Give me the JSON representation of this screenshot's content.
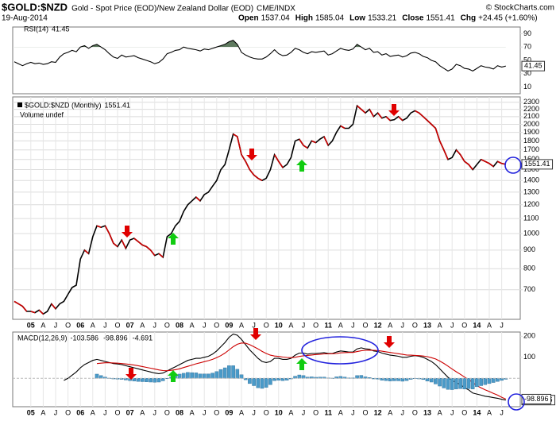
{
  "header": {
    "symbol": "$GOLD:$NZD",
    "name": "Gold - Spot Price (EOD)/New Zealand Dollar (EOD)",
    "exchange": "CME/INDX",
    "date": "19-Aug-2014",
    "quote": [
      {
        "label": "Open",
        "value": 1537.04
      },
      {
        "label": "High",
        "value": 1585.04
      },
      {
        "label": "Low",
        "value": 1533.21
      },
      {
        "label": "Close",
        "value": 1551.41
      },
      {
        "label": "Chg",
        "value": "+24.45 (+1.60%)"
      }
    ],
    "credit": "© StockCharts.com"
  },
  "chart_data": [
    {
      "type": "line",
      "ylim": [
        0,
        100
      ],
      "yticks": [
        10,
        30,
        50,
        70,
        90
      ],
      "shade_above": 70,
      "shade_color": "#5f7a5f",
      "series": [
        {
          "name": "RSI(14)",
          "color": "#000000",
          "values": [
            48,
            45,
            42,
            45,
            47,
            45,
            46,
            44,
            45,
            48,
            47,
            55,
            60,
            62,
            65,
            63,
            70,
            72,
            68,
            72,
            74,
            70,
            66,
            60,
            55,
            53,
            58,
            55,
            56,
            57,
            54,
            52,
            50,
            48,
            45,
            47,
            52,
            60,
            62,
            65,
            66,
            70,
            68,
            67,
            66,
            64,
            67,
            66,
            68,
            70,
            72,
            74,
            78,
            80,
            74,
            62,
            58,
            55,
            53,
            52,
            52,
            55,
            60,
            66,
            60,
            57,
            58,
            62,
            68,
            66,
            62,
            60,
            63,
            62,
            63,
            64,
            58,
            60,
            64,
            68,
            66,
            65,
            67,
            74,
            70,
            66,
            68,
            62,
            63,
            58,
            60,
            56,
            57,
            58,
            55,
            57,
            61,
            62,
            60,
            56,
            54,
            50,
            48,
            42,
            38,
            34,
            37,
            44,
            42,
            38,
            37,
            34,
            38,
            42,
            40,
            39,
            37,
            42,
            40,
            41.45
          ]
        }
      ]
    },
    {
      "type": "line",
      "log_scale": true,
      "grid": true,
      "ylim": [
        580,
        2380
      ],
      "yticks": [
        700,
        800,
        900,
        1000,
        1100,
        1200,
        1300,
        1400,
        1500,
        1600,
        1700,
        1800,
        1900,
        2000,
        2100,
        2200,
        2300
      ],
      "subtitle": "Volume undef",
      "categories": [
        null,
        null,
        null,
        null,
        "05",
        null,
        null,
        "A",
        null,
        null,
        "J",
        null,
        null,
        "O",
        null,
        null,
        "06",
        null,
        null,
        "A",
        null,
        null,
        "J",
        null,
        null,
        "O",
        null,
        null,
        "07",
        null,
        null,
        "A",
        null,
        null,
        "J",
        null,
        null,
        "O",
        null,
        null,
        "08",
        null,
        null,
        "A",
        null,
        null,
        "J",
        null,
        null,
        "O",
        null,
        null,
        "09",
        null,
        null,
        "A",
        null,
        null,
        "J",
        null,
        null,
        "O",
        null,
        null,
        "10",
        null,
        null,
        "A",
        null,
        null,
        "J",
        null,
        null,
        "O",
        null,
        null,
        "11",
        null,
        null,
        "A",
        null,
        null,
        "J",
        null,
        null,
        "O",
        null,
        null,
        "12",
        null,
        null,
        "A",
        null,
        null,
        "J",
        null,
        null,
        "O",
        null,
        null,
        "13",
        null,
        null,
        "A",
        null,
        null,
        "J",
        null,
        null,
        "O",
        null,
        null,
        "14",
        null,
        null,
        "A",
        null,
        null,
        "J",
        null
      ],
      "series": [
        {
          "name": "$GOLD:$NZD (Monthly)",
          "color": "#000000",
          "down_color": "#cc0000",
          "values": [
            650,
            640,
            630,
            610,
            610,
            605,
            615,
            600,
            610,
            640,
            620,
            640,
            650,
            680,
            710,
            720,
            850,
            900,
            880,
            980,
            1050,
            1040,
            1050,
            1000,
            940,
            920,
            960,
            910,
            960,
            970,
            950,
            930,
            920,
            900,
            870,
            880,
            860,
            980,
            1000,
            1050,
            1080,
            1150,
            1200,
            1230,
            1260,
            1230,
            1280,
            1300,
            1350,
            1400,
            1500,
            1550,
            1700,
            1880,
            1850,
            1650,
            1580,
            1500,
            1450,
            1420,
            1400,
            1420,
            1500,
            1650,
            1580,
            1520,
            1550,
            1620,
            1800,
            1820,
            1750,
            1720,
            1800,
            1780,
            1820,
            1850,
            1750,
            1800,
            1900,
            1980,
            1950,
            1950,
            2000,
            2250,
            2200,
            2150,
            2200,
            2100,
            2150,
            2080,
            2100,
            2050,
            2060,
            2100,
            2050,
            2080,
            2150,
            2180,
            2150,
            2100,
            2050,
            2000,
            1950,
            1800,
            1700,
            1600,
            1620,
            1700,
            1650,
            1580,
            1550,
            1500,
            1550,
            1600,
            1580,
            1560,
            1530,
            1580,
            1560,
            1551.41
          ]
        }
      ]
    },
    {
      "type": "line",
      "ylim": [
        -135,
        220
      ],
      "yticks": [
        100,
        200
      ],
      "categories": [
        null,
        null,
        null,
        null,
        "05",
        null,
        null,
        "A",
        null,
        null,
        "J",
        null,
        null,
        "O",
        null,
        null,
        "06",
        null,
        null,
        "A",
        null,
        null,
        "J",
        null,
        null,
        "O",
        null,
        null,
        "07",
        null,
        null,
        "A",
        null,
        null,
        "J",
        null,
        null,
        "O",
        null,
        null,
        "08",
        null,
        null,
        "A",
        null,
        null,
        "J",
        null,
        null,
        "O",
        null,
        null,
        "09",
        null,
        null,
        "A",
        null,
        null,
        "J",
        null,
        null,
        "O",
        null,
        null,
        "10",
        null,
        null,
        "A",
        null,
        null,
        "J",
        null,
        null,
        "O",
        null,
        null,
        "11",
        null,
        null,
        "A",
        null,
        null,
        "J",
        null,
        null,
        "O",
        null,
        null,
        "12",
        null,
        null,
        "A",
        null,
        null,
        "J",
        null,
        null,
        "O",
        null,
        null,
        "13",
        null,
        null,
        "A",
        null,
        null,
        "J",
        null,
        null,
        "O",
        null,
        null,
        "14",
        null,
        null,
        "A",
        null,
        null,
        "J",
        null
      ],
      "series": [
        {
          "name": "MACD(12,26,9)",
          "color": "#000000",
          "values": [
            null,
            null,
            null,
            null,
            null,
            null,
            null,
            null,
            null,
            null,
            null,
            null,
            -10,
            0,
            15,
            30,
            50,
            65,
            75,
            85,
            90,
            85,
            80,
            75,
            70,
            68,
            65,
            60,
            55,
            50,
            45,
            40,
            35,
            30,
            25,
            22,
            25,
            35,
            45,
            55,
            65,
            75,
            85,
            90,
            95,
            95,
            100,
            105,
            115,
            130,
            150,
            170,
            195,
            210,
            205,
            185,
            160,
            135,
            115,
            95,
            80,
            75,
            80,
            95,
            95,
            90,
            90,
            95,
            110,
            120,
            120,
            115,
            118,
            118,
            120,
            122,
            118,
            118,
            125,
            130,
            128,
            125,
            125,
            140,
            145,
            140,
            138,
            130,
            128,
            120,
            115,
            110,
            108,
            105,
            100,
            100,
            105,
            108,
            105,
            100,
            90,
            80,
            65,
            45,
            25,
            5,
            -10,
            -20,
            -30,
            -45,
            -55,
            -70,
            -75,
            -80,
            -85,
            -88,
            -92,
            -95,
            -100,
            -103.586
          ]
        },
        {
          "color": "#cc0000",
          "values": [
            null,
            null,
            null,
            null,
            null,
            null,
            null,
            null,
            null,
            null,
            null,
            null,
            null,
            null,
            null,
            null,
            null,
            null,
            null,
            null,
            70,
            72,
            74,
            74,
            73,
            72,
            70,
            68,
            66,
            63,
            60,
            56,
            52,
            48,
            44,
            40,
            37,
            36,
            38,
            41,
            45,
            51,
            57,
            63,
            69,
            74,
            79,
            84,
            90,
            98,
            108,
            120,
            135,
            150,
            162,
            168,
            167,
            160,
            150,
            140,
            128,
            118,
            110,
            106,
            104,
            101,
            99,
            98,
            100,
            104,
            107,
            109,
            111,
            113,
            114,
            116,
            116,
            117,
            118,
            121,
            122,
            123,
            123,
            127,
            131,
            133,
            134,
            133,
            132,
            129,
            126,
            123,
            120,
            117,
            114,
            111,
            110,
            109,
            108,
            106,
            103,
            98,
            92,
            82,
            71,
            58,
            44,
            31,
            19,
            6,
            -6,
            -19,
            -35,
            -45,
            -55,
            -63,
            -72,
            -80,
            -90,
            -98.896
          ]
        },
        {
          "type": "bar",
          "color": "#4a9ac8",
          "values": [
            null,
            null,
            null,
            null,
            null,
            null,
            null,
            null,
            null,
            null,
            null,
            null,
            null,
            null,
            null,
            null,
            null,
            null,
            null,
            null,
            20,
            13,
            6,
            1,
            -3,
            -4,
            -5,
            -8,
            -11,
            -13,
            -15,
            -16,
            -17,
            -18,
            -19,
            -18,
            -12,
            -1,
            7,
            14,
            20,
            24,
            28,
            27,
            26,
            21,
            21,
            21,
            25,
            32,
            42,
            50,
            60,
            60,
            43,
            17,
            -7,
            -25,
            -35,
            -45,
            -48,
            -43,
            -30,
            -11,
            -9,
            -11,
            -9,
            -3,
            10,
            16,
            13,
            6,
            7,
            5,
            6,
            6,
            2,
            1,
            7,
            9,
            6,
            2,
            2,
            13,
            14,
            7,
            4,
            -3,
            -4,
            -9,
            -11,
            -13,
            -12,
            -12,
            -14,
            -11,
            -5,
            -1,
            -3,
            -6,
            -13,
            -18,
            -27,
            -37,
            -46,
            -53,
            -54,
            -51,
            -49,
            -51,
            -49,
            -51,
            -40,
            -35,
            -30,
            -25,
            -20,
            -15,
            -10,
            -4.691
          ]
        }
      ]
    }
  ]
}
